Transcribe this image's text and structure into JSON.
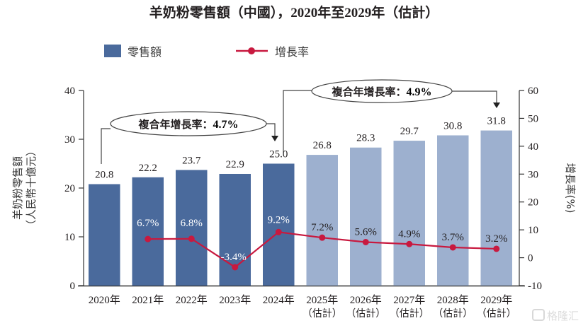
{
  "chart_data": {
    "type": "bar",
    "title": "羊奶粉零售額（中國），2020年至2029年（估計）",
    "categories": [
      "2020年",
      "2021年",
      "2022年",
      "2023年",
      "2024年",
      "2025年",
      "2026年",
      "2027年",
      "2028年",
      "2029年"
    ],
    "category_sublabels": [
      "",
      "",
      "",
      "",
      "",
      "（估計）",
      "（估計）",
      "（估計）",
      "（估計）",
      "（估計）"
    ],
    "series": [
      {
        "name": "零售額",
        "type": "bar",
        "axis": "left",
        "values": [
          20.8,
          22.2,
          23.7,
          22.9,
          25.0,
          26.8,
          28.3,
          29.7,
          30.8,
          31.8
        ],
        "labels": [
          "20.8",
          "22.2",
          "23.7",
          "22.9",
          "25.0",
          "26.8",
          "28.3",
          "29.7",
          "30.8",
          "31.8"
        ],
        "color_actual": "#4a6a9c",
        "color_forecast": "#9db0cf",
        "forecast_from_index": 5
      },
      {
        "name": "增長率",
        "type": "line",
        "axis": "right",
        "values": [
          null,
          6.7,
          6.8,
          -3.4,
          9.2,
          7.2,
          5.6,
          4.9,
          3.7,
          3.2
        ],
        "labels": [
          "",
          "6.7%",
          "6.8%",
          "-3.4%",
          "9.2%",
          "7.2%",
          "5.6%",
          "4.9%",
          "3.7%",
          "3.2%"
        ],
        "color": "#c8193f"
      }
    ],
    "ylabel": "羊奶粉零售額",
    "ylabel_unit": "（人民幣十億元）",
    "ylim": [
      0,
      40
    ],
    "yticks": [
      0,
      10,
      20,
      30,
      40
    ],
    "y2label": "增長率(%)",
    "y2lim": [
      -10,
      60
    ],
    "y2ticks": [
      -10,
      0,
      10,
      20,
      30,
      40,
      50,
      60
    ],
    "legend": {
      "position": "top-left",
      "entries": [
        "零售額",
        "增長率"
      ]
    },
    "grid": false,
    "annotations": [
      {
        "text": "複合年增長率：",
        "value": "4.7%",
        "from": "2020年",
        "to": "2024年"
      },
      {
        "text": "複合年增長率：",
        "value": "4.9%",
        "from": "2024年",
        "to": "2029年"
      }
    ]
  },
  "watermark": {
    "text": "格隆汇",
    "icon": "gelonghui-logo-icon"
  }
}
